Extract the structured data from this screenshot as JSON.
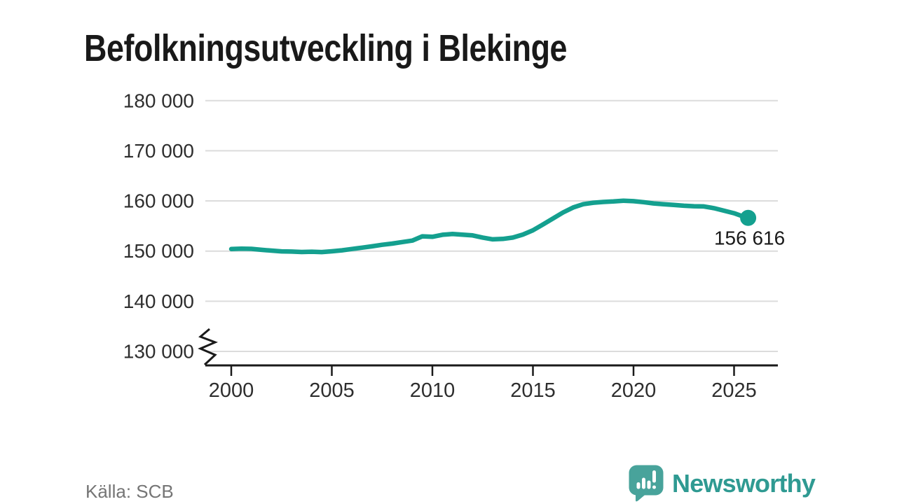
{
  "header": {
    "title": "Befolkningsutveckling i Blekinge"
  },
  "footer": {
    "source": "Källa: SCB",
    "brand_name": "Newsworthy"
  },
  "colors": {
    "background": "#ffffff",
    "title": "#191919",
    "line": "#14a08f",
    "grid": "#dcdcdc",
    "axis": "#1a1a1a",
    "tick_label": "#2e2e2e",
    "endpoint_label": "#1a1a1a",
    "source_text": "#757575",
    "brand_teal": "#2f9a92",
    "brand_icon_teal": "#48a39b"
  },
  "chart_data": {
    "type": "line",
    "title": "Befolkningsutveckling i Blekinge",
    "xlabel": "",
    "ylabel": "",
    "grid": "horizontal",
    "legend": "none",
    "x_axis": {
      "ticks": [
        2000,
        2005,
        2010,
        2015,
        2020,
        2025
      ],
      "tick_labels": [
        "2000",
        "2005",
        "2010",
        "2015",
        "2020",
        "2025"
      ],
      "range": [
        1998.7,
        2027.2
      ]
    },
    "y_axis": {
      "ticks": [
        130000,
        140000,
        150000,
        160000,
        170000,
        180000
      ],
      "tick_labels": [
        "130 000",
        "140 000",
        "150 000",
        "160 000",
        "170 000",
        "180 000"
      ],
      "range": [
        130000,
        181000
      ],
      "axis_break": true
    },
    "series": [
      {
        "name": "population",
        "points": [
          [
            2000.0,
            150400
          ],
          [
            2000.5,
            150480
          ],
          [
            2001.0,
            150450
          ],
          [
            2001.5,
            150250
          ],
          [
            2002.0,
            150100
          ],
          [
            2002.5,
            149950
          ],
          [
            2003.0,
            149900
          ],
          [
            2003.5,
            149820
          ],
          [
            2004.0,
            149880
          ],
          [
            2004.5,
            149800
          ],
          [
            2005.0,
            149960
          ],
          [
            2005.5,
            150150
          ],
          [
            2006.0,
            150420
          ],
          [
            2006.5,
            150680
          ],
          [
            2007.0,
            150950
          ],
          [
            2007.5,
            151250
          ],
          [
            2008.0,
            151500
          ],
          [
            2008.5,
            151800
          ],
          [
            2009.0,
            152100
          ],
          [
            2009.5,
            152950
          ],
          [
            2010.0,
            152850
          ],
          [
            2010.5,
            153250
          ],
          [
            2011.0,
            153400
          ],
          [
            2011.5,
            153280
          ],
          [
            2012.0,
            153120
          ],
          [
            2012.5,
            152700
          ],
          [
            2013.0,
            152350
          ],
          [
            2013.5,
            152430
          ],
          [
            2014.0,
            152700
          ],
          [
            2014.5,
            153300
          ],
          [
            2015.0,
            154150
          ],
          [
            2015.5,
            155300
          ],
          [
            2016.0,
            156500
          ],
          [
            2016.5,
            157700
          ],
          [
            2017.0,
            158700
          ],
          [
            2017.5,
            159350
          ],
          [
            2018.0,
            159650
          ],
          [
            2018.5,
            159800
          ],
          [
            2019.0,
            159900
          ],
          [
            2019.5,
            160050
          ],
          [
            2020.0,
            159950
          ],
          [
            2020.5,
            159750
          ],
          [
            2021.0,
            159500
          ],
          [
            2021.5,
            159350
          ],
          [
            2022.0,
            159200
          ],
          [
            2022.5,
            159050
          ],
          [
            2023.0,
            158950
          ],
          [
            2023.5,
            158900
          ],
          [
            2024.0,
            158550
          ],
          [
            2024.5,
            158050
          ],
          [
            2025.0,
            157550
          ],
          [
            2025.35,
            157050
          ],
          [
            2025.7,
            156616
          ]
        ]
      }
    ],
    "endpoint": {
      "label": "156 616",
      "value": 156616,
      "x": 2025.7
    }
  }
}
